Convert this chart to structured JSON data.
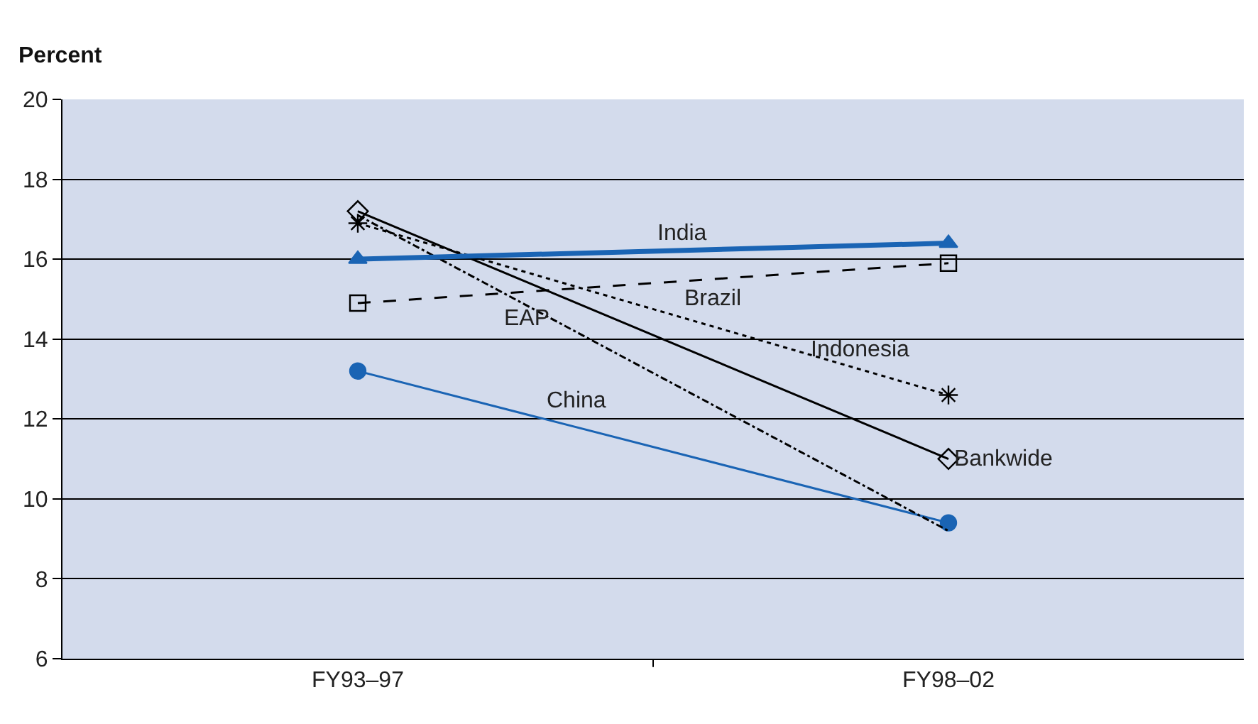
{
  "chart_data": {
    "type": "line",
    "ylabel": "Percent",
    "categories": [
      "FY93–97",
      "FY98–02"
    ],
    "ylim": [
      6,
      20
    ],
    "yticks": [
      6,
      8,
      10,
      12,
      14,
      16,
      18,
      20
    ],
    "grid": "y",
    "legend": false,
    "series": [
      {
        "name": "India",
        "color": "#1a64b4",
        "values": [
          16.0,
          16.4
        ],
        "marker": "triangle",
        "line_style": "solid"
      },
      {
        "name": "Brazil",
        "color": "#000000",
        "values": [
          14.9,
          15.9
        ],
        "marker": "square",
        "line_style": "dashed"
      },
      {
        "name": "Indonesia",
        "color": "#000000",
        "values": [
          16.9,
          12.6
        ],
        "marker": "cross",
        "line_style": "dotted"
      },
      {
        "name": "Bankwide",
        "color": "#000000",
        "values": [
          17.2,
          11.0
        ],
        "marker": "diamond",
        "line_style": "solid"
      },
      {
        "name": "EAP",
        "color": "#000000",
        "values": [
          17.1,
          9.2
        ],
        "marker": "none",
        "line_style": "dashdot"
      },
      {
        "name": "China",
        "color": "#1a64b4",
        "values": [
          13.2,
          9.4
        ],
        "marker": "circle",
        "line_style": "solid"
      }
    ]
  }
}
